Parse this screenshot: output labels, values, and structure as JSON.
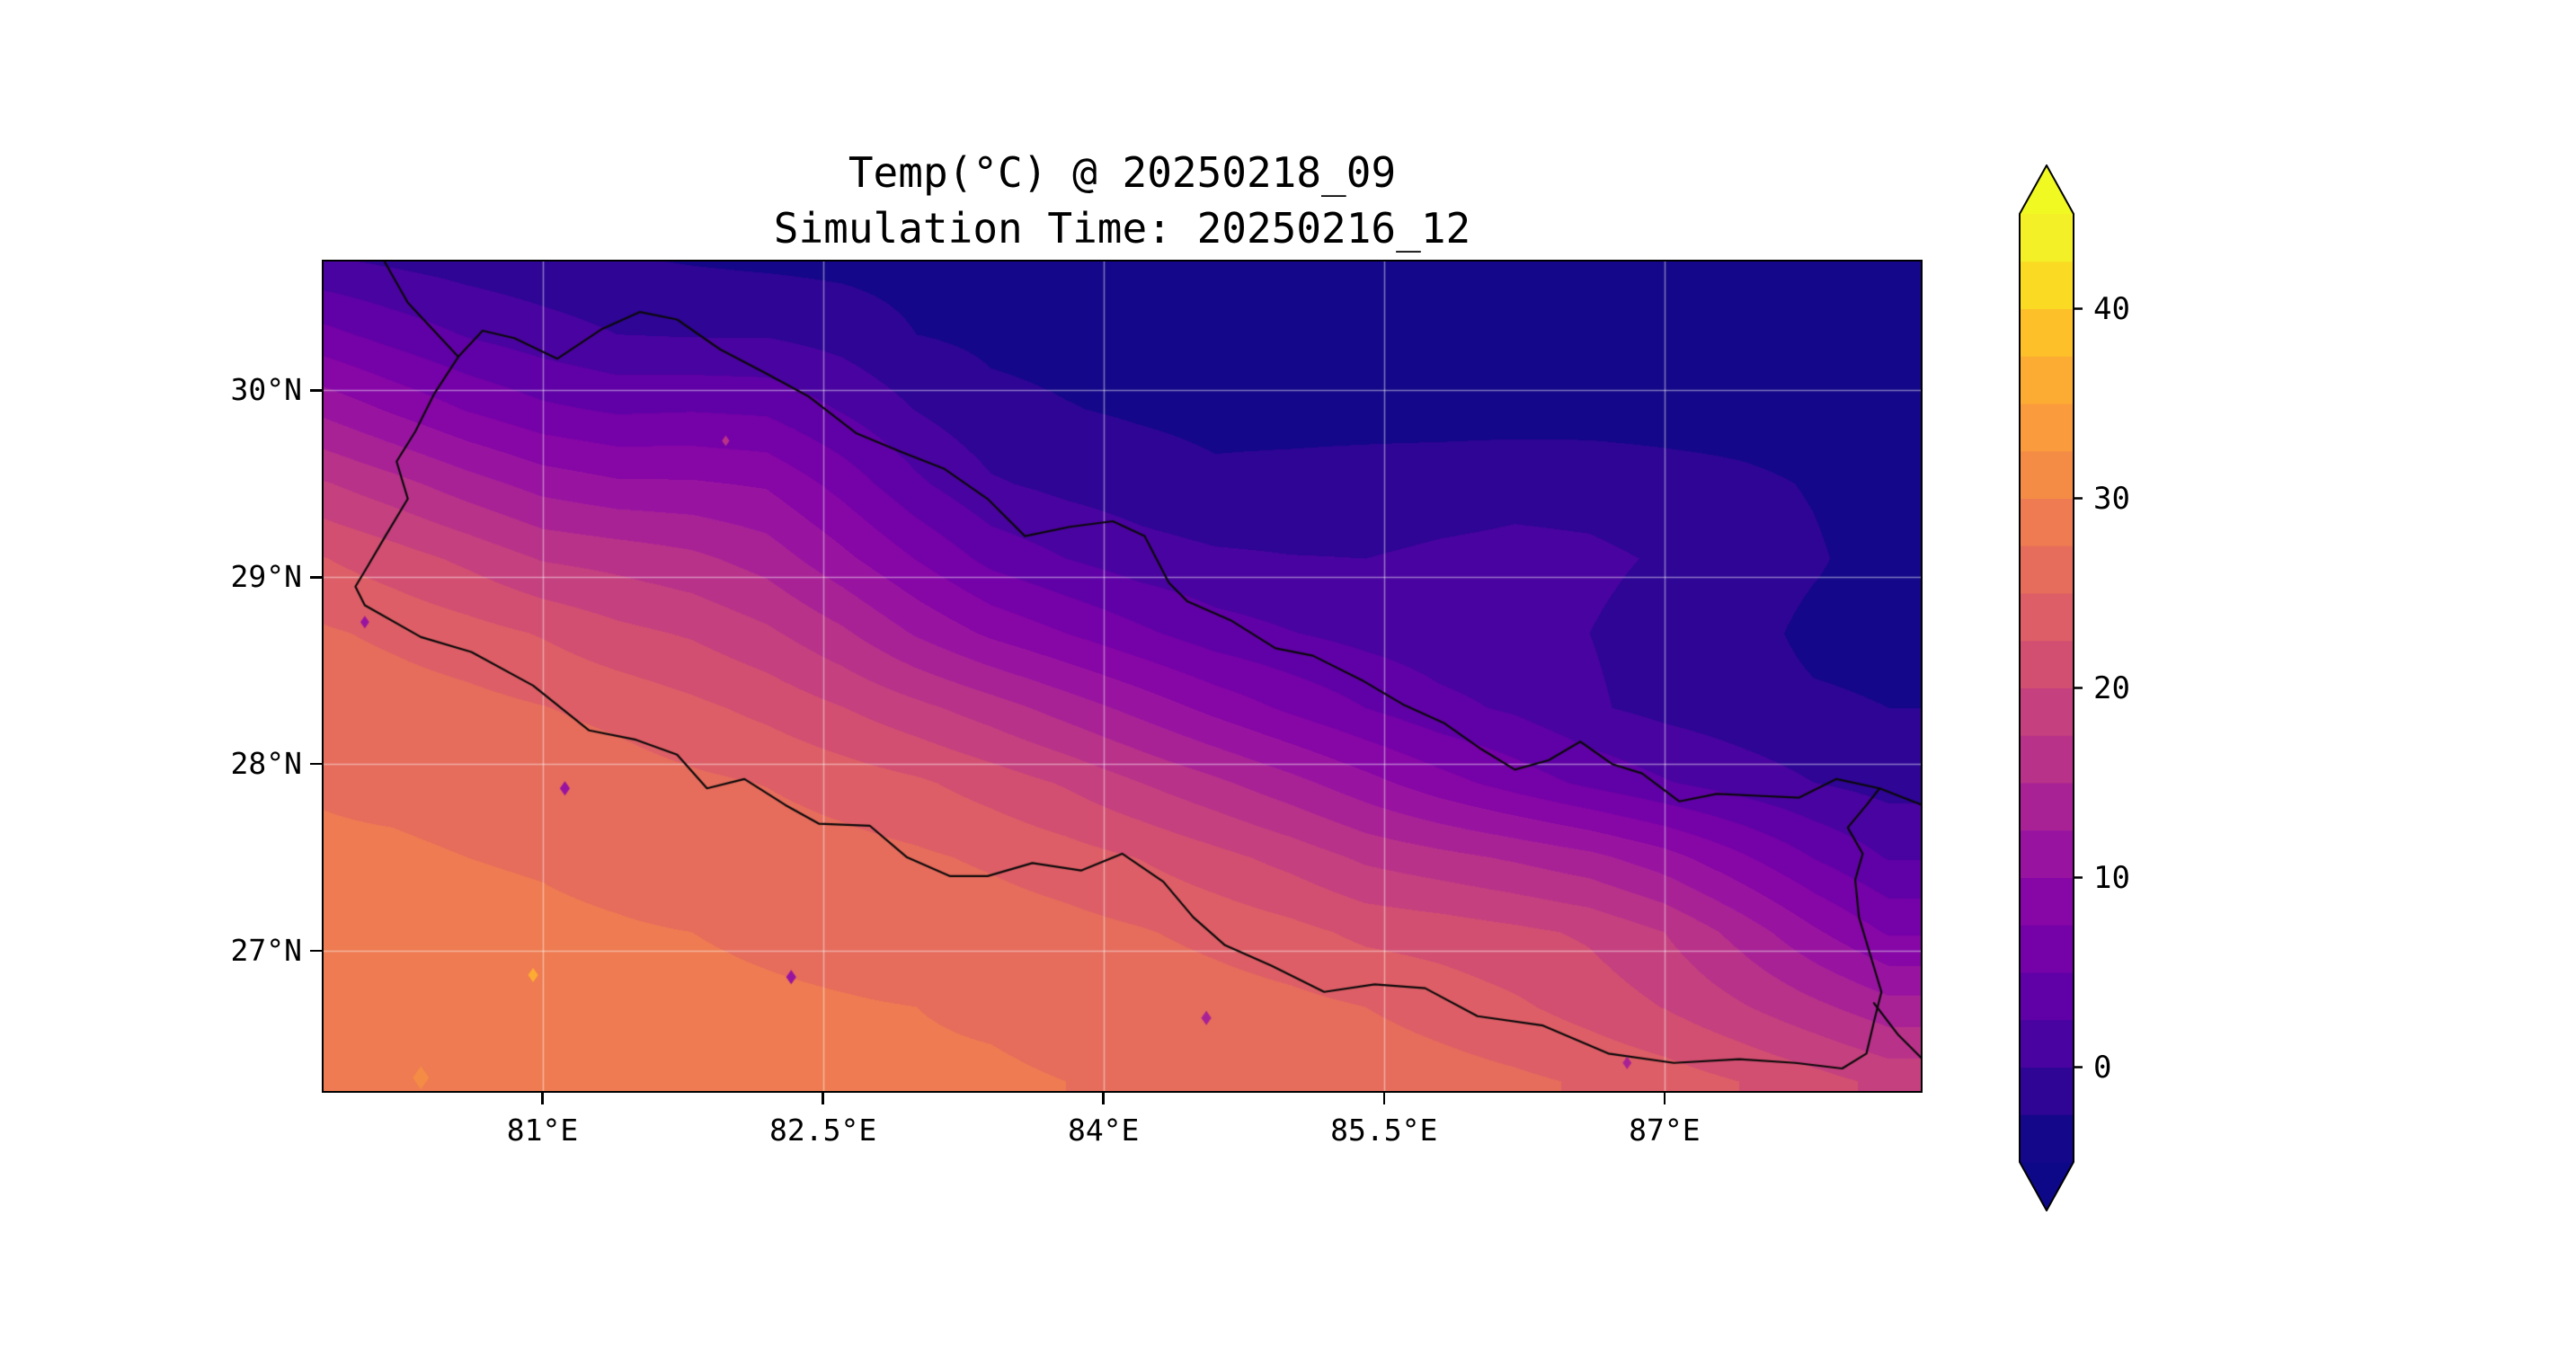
{
  "figure": {
    "title": "Temp(°C) @ 20250218_09",
    "subtitle": "Simulation Time: 20250216_12",
    "background": "#ffffff"
  },
  "axes": {
    "x_ticks": [
      {
        "label": "81°E",
        "lon": 81.0
      },
      {
        "label": "82.5°E",
        "lon": 82.5
      },
      {
        "label": "84°E",
        "lon": 84.0
      },
      {
        "label": "85.5°E",
        "lon": 85.5
      },
      {
        "label": "87°E",
        "lon": 87.0
      }
    ],
    "y_ticks": [
      {
        "label": "30°N",
        "lat": 30.0
      },
      {
        "label": "29°N",
        "lat": 29.0
      },
      {
        "label": "28°N",
        "lat": 28.0
      },
      {
        "label": "27°N",
        "lat": 27.0
      }
    ],
    "grid_color": "rgba(255,255,255,0.45)",
    "spine_color": "#000000",
    "border_line_color": "#0a0a0a"
  },
  "colorbar": {
    "ticks": [
      {
        "label": "40",
        "value": 40
      },
      {
        "label": "30",
        "value": 30
      },
      {
        "label": "20",
        "value": 20
      },
      {
        "label": "10",
        "value": 10
      },
      {
        "label": "0",
        "value": 0
      }
    ],
    "vmin": -5,
    "vmax": 45,
    "step": 2.5,
    "under_color": "#0d0887",
    "over_color": "#f0f921",
    "outline_color": "#000000"
  },
  "chart_data": {
    "type": "heatmap",
    "title": "Temp(°C) @ 20250218_09",
    "subtitle": "Simulation Time: 20250216_12",
    "variable": "Temp",
    "units": "°C",
    "valid_time": "20250218_09",
    "simulation_time": "20250216_12",
    "colormap": "plasma",
    "levels": {
      "min": -5,
      "max": 45,
      "step": 2.5
    },
    "band_colors": [
      "#140789",
      "#2e0595",
      "#4903a0",
      "#5f01a6",
      "#7501a8",
      "#8606a6",
      "#9814a0",
      "#a82296",
      "#b83289",
      "#c5407e",
      "#d24f71",
      "#dd5e66",
      "#e66c5c",
      "#ee7b51",
      "#f58c46",
      "#fa9b3d",
      "#fdac33",
      "#fdc029",
      "#fada23",
      "#f4f027"
    ],
    "extent": {
      "lon": [
        79.82,
        88.38
      ],
      "lat": [
        26.24,
        30.7
      ]
    },
    "lon": [
      79.8,
      80.2,
      80.6,
      81.0,
      81.4,
      81.8,
      82.2,
      82.6,
      83.0,
      83.4,
      83.8,
      84.2,
      84.6,
      85.0,
      85.4,
      85.8,
      86.2,
      86.6,
      87.0,
      87.4,
      87.8,
      88.2
    ],
    "lat": [
      30.7,
      30.3,
      29.9,
      29.5,
      29.1,
      28.7,
      28.3,
      27.9,
      27.5,
      27.1,
      26.7,
      26.3
    ],
    "values": [
      [
        0.3,
        -0.5,
        -1.2,
        -1.8,
        -2.3,
        -2.7,
        -3.0,
        -3.2,
        -3.4,
        -3.5,
        -3.6,
        -3.7,
        -3.8,
        -3.8,
        -3.8,
        -3.9,
        -3.9,
        -3.9,
        -3.9,
        -3.9,
        -3.9,
        -3.9
      ],
      [
        5.9,
        4.0,
        2.3,
        1.1,
        0.0,
        -0.2,
        -0.2,
        -1.0,
        -2.5,
        -3.0,
        -3.2,
        -3.4,
        -3.6,
        -3.7,
        -3.7,
        -3.8,
        -3.8,
        -3.8,
        -3.9,
        -3.9,
        -3.9,
        -3.9
      ],
      [
        12.0,
        9.6,
        7.3,
        5.5,
        4.6,
        4.8,
        4.5,
        2.3,
        -0.1,
        -1.9,
        -2.4,
        -2.8,
        -3.1,
        -3.3,
        -3.4,
        -3.6,
        -3.7,
        -3.7,
        -3.8,
        -3.8,
        -3.9,
        -3.9
      ],
      [
        17.9,
        15.9,
        13.6,
        11.5,
        10.4,
        10.3,
        9.7,
        6.6,
        3.0,
        0.3,
        -0.7,
        -1.4,
        -2.1,
        -1.8,
        -1.5,
        -1.1,
        -0.7,
        -0.8,
        -1.3,
        -1.9,
        -2.7,
        -3.8
      ],
      [
        22.7,
        21.2,
        19.4,
        17.3,
        16.6,
        15.6,
        13.9,
        10.7,
        7.4,
        4.2,
        2.5,
        1.1,
        0.4,
        0.1,
        0.0,
        0.4,
        0.6,
        0.4,
        -0.2,
        -1.2,
        -2.2,
        -3.6
      ],
      [
        25.4,
        24.5,
        23.5,
        22.3,
        20.7,
        19.7,
        18.0,
        15.5,
        12.2,
        9.5,
        7.5,
        5.5,
        3.6,
        2.6,
        1.7,
        1.0,
        0.7,
        0.0,
        -0.8,
        -1.6,
        -3.1,
        -3.3
      ],
      [
        26.8,
        26.3,
        25.8,
        25.1,
        24.3,
        23.1,
        21.8,
        20.1,
        18.2,
        16.2,
        13.9,
        11.6,
        9.2,
        7.0,
        5.0,
        3.2,
        2.1,
        0.3,
        -0.7,
        -1.4,
        -2.1,
        -2.5
      ],
      [
        27.4,
        27.2,
        27.0,
        26.7,
        26.2,
        25.5,
        24.9,
        23.9,
        22.9,
        21.4,
        19.7,
        17.5,
        15.5,
        13.3,
        10.9,
        8.5,
        6.4,
        4.4,
        2.7,
        1.3,
        0.0,
        -0.9
      ],
      [
        27.7,
        27.7,
        27.5,
        27.4,
        27.2,
        26.9,
        26.5,
        26.0,
        25.4,
        24.6,
        23.6,
        22.4,
        20.8,
        19.1,
        17.0,
        15.8,
        14.6,
        13.2,
        11.0,
        8.0,
        4.9,
        2.3
      ],
      [
        27.9,
        27.8,
        27.8,
        27.7,
        27.6,
        27.5,
        27.3,
        27.1,
        26.8,
        26.4,
        25.9,
        25.2,
        24.3,
        23.3,
        21.9,
        21.4,
        20.6,
        19.6,
        17.5,
        14.1,
        10.4,
        7.2
      ],
      [
        27.9,
        27.9,
        27.9,
        27.9,
        27.8,
        27.8,
        27.7,
        27.6,
        27.5,
        27.3,
        27.0,
        26.7,
        26.2,
        25.7,
        25.0,
        24.0,
        22.9,
        21.5,
        19.9,
        17.8,
        15.6,
        13.4
      ],
      [
        28.0,
        27.9,
        27.9,
        27.9,
        27.9,
        27.9,
        27.8,
        27.8,
        27.7,
        27.7,
        27.5,
        27.4,
        27.2,
        26.9,
        26.6,
        26.1,
        25.5,
        24.7,
        23.8,
        22.5,
        21.0,
        19.3
      ]
    ],
    "border": [
      [
        80.05,
        28.85
      ],
      [
        80.35,
        28.68
      ],
      [
        80.62,
        28.6
      ],
      [
        80.95,
        28.42
      ],
      [
        81.25,
        28.18
      ],
      [
        81.5,
        28.13
      ],
      [
        81.72,
        28.05
      ],
      [
        81.88,
        27.87
      ],
      [
        82.08,
        27.92
      ],
      [
        82.3,
        27.78
      ],
      [
        82.48,
        27.68
      ],
      [
        82.75,
        27.67
      ],
      [
        82.95,
        27.5
      ],
      [
        83.18,
        27.4
      ],
      [
        83.38,
        27.4
      ],
      [
        83.62,
        27.47
      ],
      [
        83.88,
        27.43
      ],
      [
        84.1,
        27.52
      ],
      [
        84.32,
        27.37
      ],
      [
        84.48,
        27.18
      ],
      [
        84.65,
        27.03
      ],
      [
        84.9,
        26.92
      ],
      [
        85.18,
        26.78
      ],
      [
        85.45,
        26.82
      ],
      [
        85.72,
        26.8
      ],
      [
        86.0,
        26.65
      ],
      [
        86.35,
        26.6
      ],
      [
        86.7,
        26.45
      ],
      [
        87.05,
        26.4
      ],
      [
        87.4,
        26.42
      ],
      [
        87.7,
        26.4
      ],
      [
        87.95,
        26.37
      ],
      [
        88.08,
        26.45
      ],
      [
        88.12,
        26.62
      ],
      [
        88.16,
        26.78
      ],
      [
        88.1,
        26.98
      ],
      [
        88.04,
        27.18
      ],
      [
        88.02,
        27.38
      ],
      [
        88.06,
        27.52
      ],
      [
        87.98,
        27.66
      ],
      [
        88.08,
        27.78
      ],
      [
        88.15,
        27.87
      ],
      [
        87.92,
        27.92
      ],
      [
        87.72,
        27.82
      ],
      [
        87.5,
        27.83
      ],
      [
        87.28,
        27.84
      ],
      [
        87.08,
        27.8
      ],
      [
        86.88,
        27.95
      ],
      [
        86.72,
        28.0
      ],
      [
        86.55,
        28.12
      ],
      [
        86.38,
        28.02
      ],
      [
        86.2,
        27.97
      ],
      [
        86.02,
        28.08
      ],
      [
        85.82,
        28.22
      ],
      [
        85.6,
        28.32
      ],
      [
        85.38,
        28.45
      ],
      [
        85.12,
        28.58
      ],
      [
        84.92,
        28.62
      ],
      [
        84.68,
        28.77
      ],
      [
        84.45,
        28.87
      ],
      [
        84.35,
        28.97
      ],
      [
        84.22,
        29.22
      ],
      [
        84.05,
        29.3
      ],
      [
        83.82,
        29.27
      ],
      [
        83.58,
        29.22
      ],
      [
        83.38,
        29.42
      ],
      [
        83.15,
        29.58
      ],
      [
        82.92,
        29.67
      ],
      [
        82.68,
        29.77
      ],
      [
        82.42,
        29.97
      ],
      [
        82.18,
        30.1
      ],
      [
        81.95,
        30.22
      ],
      [
        81.72,
        30.38
      ],
      [
        81.52,
        30.42
      ],
      [
        81.32,
        30.33
      ],
      [
        81.08,
        30.17
      ],
      [
        80.85,
        30.28
      ],
      [
        80.68,
        30.32
      ],
      [
        80.55,
        30.18
      ],
      [
        80.42,
        29.98
      ],
      [
        80.32,
        29.78
      ],
      [
        80.22,
        29.62
      ],
      [
        80.28,
        29.42
      ],
      [
        80.16,
        29.22
      ],
      [
        80.06,
        29.05
      ],
      [
        80.0,
        28.95
      ],
      [
        80.05,
        28.85
      ]
    ],
    "extra_borders": [
      [
        [
          80.15,
          30.7
        ],
        [
          80.28,
          30.47
        ],
        [
          80.42,
          30.32
        ],
        [
          80.55,
          30.18
        ]
      ],
      [
        [
          88.15,
          27.87
        ],
        [
          88.38,
          27.78
        ]
      ],
      [
        [
          88.12,
          26.72
        ],
        [
          88.25,
          26.55
        ],
        [
          88.38,
          26.42
        ]
      ]
    ],
    "spots": [
      {
        "lon": 80.05,
        "lat": 28.76,
        "temp": 12,
        "size": 14
      },
      {
        "lon": 81.12,
        "lat": 27.87,
        "temp": 12,
        "size": 16
      },
      {
        "lon": 81.98,
        "lat": 29.73,
        "temp": 15,
        "size": 12
      },
      {
        "lon": 80.95,
        "lat": 26.87,
        "temp": 36,
        "size": 16
      },
      {
        "lon": 82.33,
        "lat": 26.86,
        "temp": 12,
        "size": 16
      },
      {
        "lon": 84.55,
        "lat": 26.64,
        "temp": 13,
        "size": 16
      },
      {
        "lon": 86.8,
        "lat": 26.4,
        "temp": 13,
        "size": 14
      },
      {
        "lon": 80.35,
        "lat": 26.32,
        "temp": 31,
        "size": 26
      }
    ]
  }
}
